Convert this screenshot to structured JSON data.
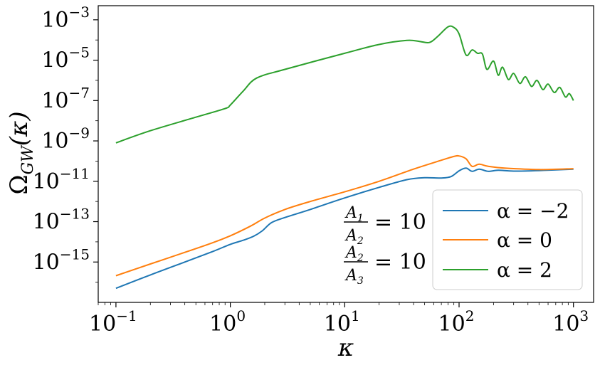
{
  "chart_data": {
    "type": "line",
    "x_scale": "log",
    "y_scale": "log",
    "xlim": [
      0.07,
      1500
    ],
    "ylim": [
      1e-17,
      0.005
    ],
    "xlabel": "κ",
    "ylabel": "Ω_GW(κ)",
    "ylabel_base": "Ω",
    "ylabel_sub": "GW",
    "ylabel_arg": "(κ)",
    "x_ticks": [
      {
        "base": "10",
        "exp": "−1",
        "value": 0.1
      },
      {
        "base": "10",
        "exp": "0",
        "value": 1
      },
      {
        "base": "10",
        "exp": "1",
        "value": 10
      },
      {
        "base": "10",
        "exp": "2",
        "value": 100
      },
      {
        "base": "10",
        "exp": "3",
        "value": 1000
      }
    ],
    "y_ticks": [
      {
        "base": "10",
        "exp": "−3",
        "value": 0.001
      },
      {
        "base": "10",
        "exp": "−5",
        "value": 1e-05
      },
      {
        "base": "10",
        "exp": "−7",
        "value": 1e-07
      },
      {
        "base": "10",
        "exp": "−9",
        "value": 1e-09
      },
      {
        "base": "10",
        "exp": "−11",
        "value": 1e-11
      },
      {
        "base": "10",
        "exp": "−13",
        "value": 1e-13
      },
      {
        "base": "10",
        "exp": "−15",
        "value": 1e-15
      }
    ],
    "legend_position": "lower-right",
    "series": [
      {
        "name": "α = −2",
        "color": "#1f77b4",
        "points": [
          [
            0.1,
            5e-17
          ],
          [
            0.2,
            2.3e-16
          ],
          [
            0.4,
            1e-15
          ],
          [
            0.7,
            3.3e-15
          ],
          [
            1.0,
            7.5e-15
          ],
          [
            1.3,
            1.2e-14
          ],
          [
            1.6,
            1.9e-14
          ],
          [
            1.9,
            3.5e-14
          ],
          [
            2.3,
            9e-14
          ],
          [
            3,
            1.6e-13
          ],
          [
            5,
            4e-13
          ],
          [
            10,
            1.5e-12
          ],
          [
            20,
            5e-12
          ],
          [
            35,
            1.2e-11
          ],
          [
            50,
            1.5e-11
          ],
          [
            70,
            1.45e-11
          ],
          [
            85,
            1.7e-11
          ],
          [
            100,
            3.3e-11
          ],
          [
            115,
            4.5e-11
          ],
          [
            130,
            3.1e-11
          ],
          [
            150,
            4e-11
          ],
          [
            180,
            3.1e-11
          ],
          [
            220,
            3.5e-11
          ],
          [
            300,
            3.2e-11
          ],
          [
            500,
            3.4e-11
          ],
          [
            1000,
            4e-11
          ]
        ]
      },
      {
        "name": "α = 0",
        "color": "#ff7f0e",
        "points": [
          [
            0.1,
            2.1e-16
          ],
          [
            0.2,
            8e-16
          ],
          [
            0.4,
            3e-15
          ],
          [
            0.7,
            9e-15
          ],
          [
            1.0,
            2e-14
          ],
          [
            1.5,
            6e-14
          ],
          [
            2,
            1.5e-13
          ],
          [
            3,
            4e-13
          ],
          [
            5,
            1e-12
          ],
          [
            10,
            3e-12
          ],
          [
            20,
            1e-11
          ],
          [
            40,
            4e-11
          ],
          [
            70,
            1.1e-10
          ],
          [
            90,
            1.7e-10
          ],
          [
            100,
            1.8e-10
          ],
          [
            115,
            1.3e-10
          ],
          [
            130,
            5.5e-11
          ],
          [
            150,
            7e-11
          ],
          [
            180,
            5.5e-11
          ],
          [
            250,
            4.5e-11
          ],
          [
            500,
            3.8e-11
          ],
          [
            1000,
            4.2e-11
          ]
        ]
      },
      {
        "name": "α = 2",
        "color": "#2ca02c",
        "points": [
          [
            0.1,
            8e-10
          ],
          [
            0.2,
            3.2e-09
          ],
          [
            0.5,
            1.5e-08
          ],
          [
            0.9,
            4e-08
          ],
          [
            1.0,
            6e-08
          ],
          [
            1.3,
            3e-07
          ],
          [
            1.7,
            1.3e-06
          ],
          [
            3,
            3.5e-06
          ],
          [
            10,
            2.2e-05
          ],
          [
            20,
            6e-05
          ],
          [
            35,
            9.5e-05
          ],
          [
            45,
            8.5e-05
          ],
          [
            55,
            7.5e-05
          ],
          [
            65,
            0.00015
          ],
          [
            80,
            0.00045
          ],
          [
            90,
            0.00042
          ],
          [
            100,
            0.0002
          ],
          [
            115,
            1.8e-05
          ],
          [
            130,
            3.2e-05
          ],
          [
            145,
            2.2e-05
          ],
          [
            160,
            2e-05
          ],
          [
            175,
            3.5e-06
          ],
          [
            200,
            9e-06
          ],
          [
            220,
            1.8e-06
          ],
          [
            240,
            4.5e-06
          ],
          [
            270,
            1.1e-06
          ],
          [
            300,
            2.2e-06
          ],
          [
            340,
            7e-07
          ],
          [
            380,
            1.5e-06
          ],
          [
            430,
            5e-07
          ],
          [
            480,
            1e-06
          ],
          [
            540,
            3.5e-07
          ],
          [
            600,
            6.5e-07
          ],
          [
            680,
            2.5e-07
          ],
          [
            760,
            4.5e-07
          ],
          [
            850,
            1.5e-07
          ],
          [
            920,
            2.2e-07
          ],
          [
            1000,
            1e-07
          ]
        ]
      }
    ],
    "annotations": [
      {
        "num": "A",
        "num_sub": "1",
        "den": "A",
        "den_sub": "2",
        "eq": "= 10"
      },
      {
        "num": "A",
        "num_sub": "2",
        "den": "A",
        "den_sub": "3",
        "eq": "= 10"
      }
    ]
  }
}
